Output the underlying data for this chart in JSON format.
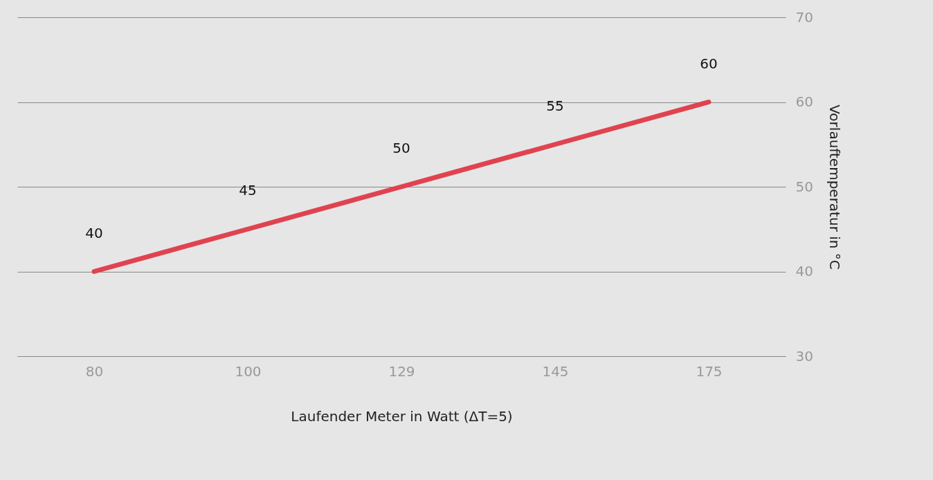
{
  "chart_data": {
    "type": "line",
    "xlabel": "Laufender Meter in Watt (ΔT=5)",
    "ylabel": "Vorlauftemperatur in °C",
    "categories": [
      "80",
      "100",
      "129",
      "145",
      "175"
    ],
    "series": [
      {
        "color": "#e0434f",
        "values": [
          40,
          45,
          50,
          55,
          60
        ]
      }
    ],
    "ylim": [
      30,
      70
    ],
    "yticks": [
      30,
      40,
      50,
      60,
      70
    ],
    "grid": "y",
    "data_labels": true,
    "marker": "none",
    "line_style": "solid"
  }
}
